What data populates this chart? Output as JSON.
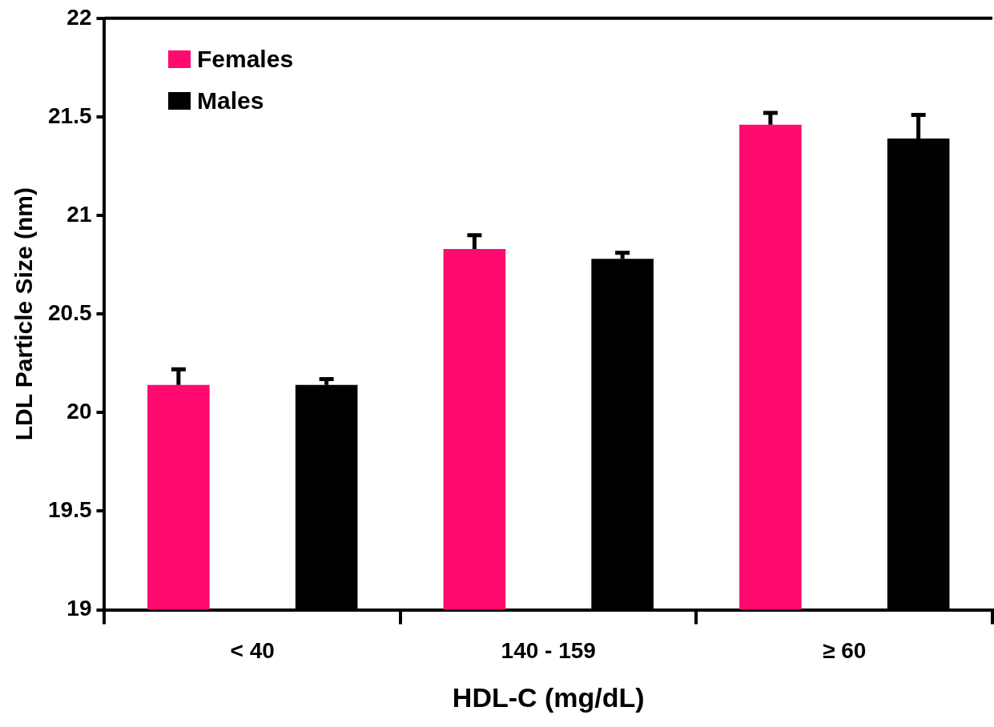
{
  "chart_data": {
    "type": "bar",
    "xlabel": "HDL-C (mg/dL)",
    "ylabel": "LDL Particle Size (nm)",
    "categories": [
      "< 40",
      "140 - 159",
      "≥ 60"
    ],
    "series": [
      {
        "name": "Females",
        "color": "#ff0a6e",
        "values": [
          20.14,
          20.83,
          21.46
        ],
        "errors": [
          [
            20.14,
            20.22
          ],
          [
            20.83,
            20.9
          ],
          [
            21.46,
            21.52
          ]
        ]
      },
      {
        "name": "Males",
        "color": "#000000",
        "values": [
          20.14,
          20.78,
          21.39
        ],
        "errors": [
          [
            20.14,
            20.17
          ],
          [
            20.78,
            20.81
          ],
          [
            21.39,
            21.51
          ]
        ]
      }
    ],
    "ylim": [
      19,
      22
    ],
    "yticks": [
      19,
      19.5,
      20,
      20.5,
      21,
      21.5,
      22
    ],
    "grid": false,
    "legend": "top left"
  }
}
